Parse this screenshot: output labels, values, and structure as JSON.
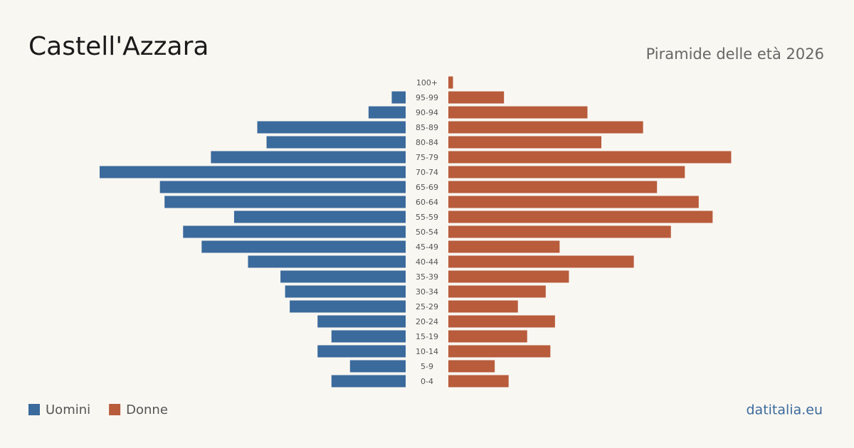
{
  "chart_data": {
    "type": "pyramid",
    "title": "Castell'Azzara",
    "subtitle": "Piramide delle età 2026",
    "source": "datitalia.eu",
    "categories": [
      "100+",
      "95-99",
      "90-94",
      "85-89",
      "80-84",
      "75-79",
      "70-74",
      "65-69",
      "60-64",
      "55-59",
      "50-54",
      "45-49",
      "40-44",
      "35-39",
      "30-34",
      "25-29",
      "20-24",
      "15-19",
      "10-14",
      "5-9",
      "0-4"
    ],
    "series": [
      {
        "name": "Uomini",
        "color": "#3b6a9c",
        "values": [
          0,
          3,
          8,
          32,
          30,
          42,
          66,
          53,
          52,
          37,
          48,
          44,
          34,
          27,
          26,
          25,
          19,
          16,
          19,
          12,
          16
        ]
      },
      {
        "name": "Donne",
        "color": "#b85c3c",
        "values": [
          1,
          12,
          30,
          42,
          33,
          61,
          51,
          45,
          54,
          57,
          48,
          24,
          40,
          26,
          21,
          15,
          23,
          17,
          22,
          10,
          13
        ]
      }
    ]
  }
}
